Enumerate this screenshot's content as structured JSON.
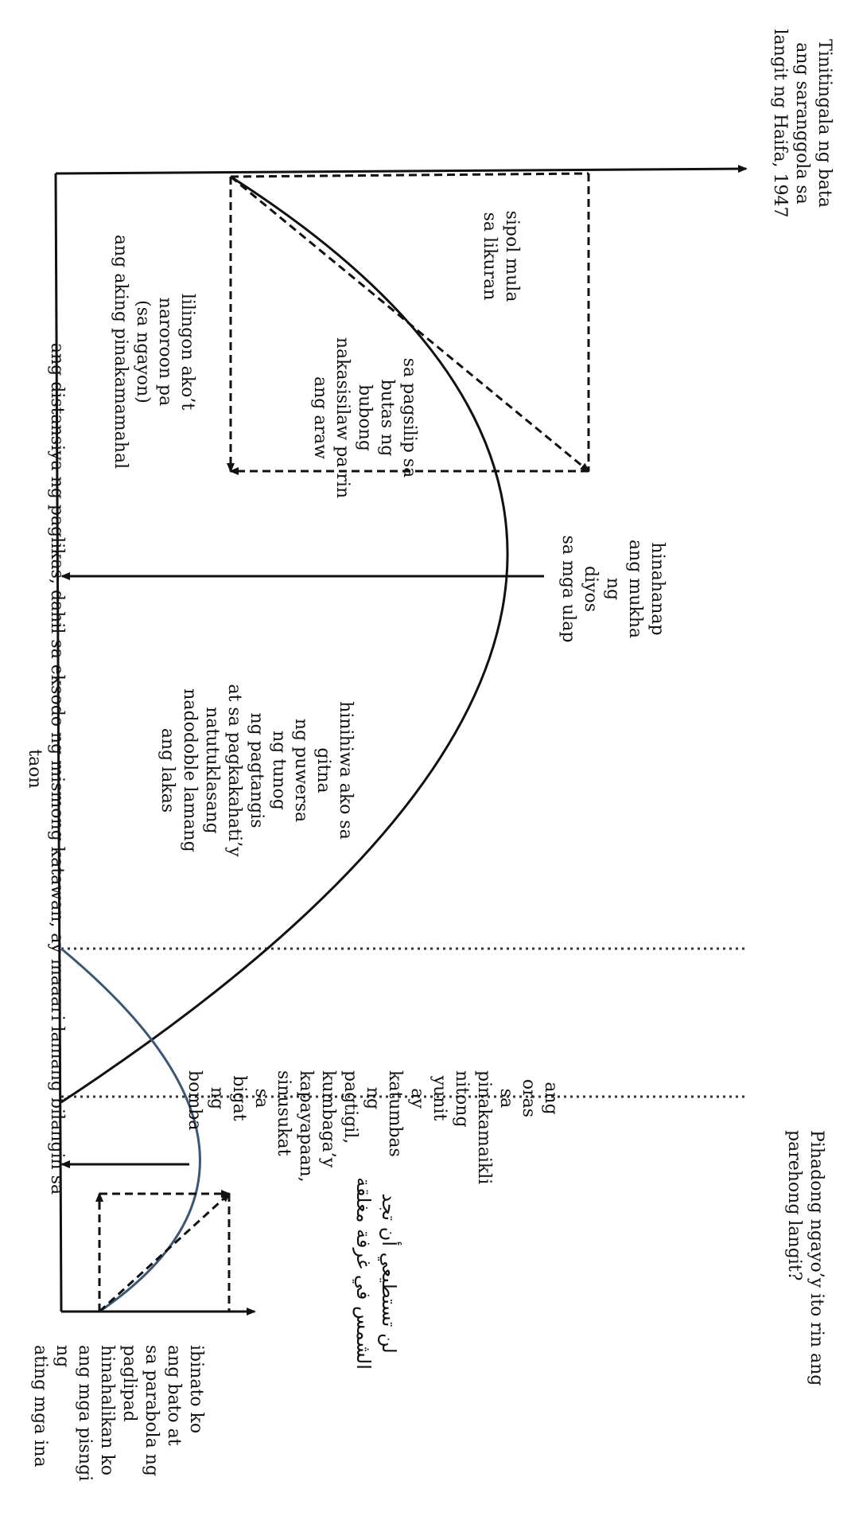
{
  "labels": {
    "kite": "Tinitingala ng bata\nang saranggola sa\nlangit ng Haifa, 1947",
    "whistle": "sipol mula\nsa likuran",
    "roof": "sa pagsilip sa\nbutas ng\nbubong\nnakasisilaw pa rin\nang araw",
    "look_back": "lilingon  ako’t\nnaroroon pa\n(sa ngayon)\nang aking pinakamamahal",
    "god_face": "hinahanap\nang mukha ng\ndiyos\nsa mga ulap",
    "torn": "hinihiwa ako sa\ngitna\nng puwersa\nng tunog\nng pagtangis\nat sa pagkakahati’y\nnatutuklasang\nnadodoble lamang\nang lakas",
    "time_unit": "ang\noras\nsa\npinakamaikli\nnitong\nyunit\nay\nkatumbas\nng\npagtigil,\nkumbaga’y\nkapayapaan,\nsinusukat\nsa\nbigat\nng\nbomba",
    "same_sky": "Pihadong ngayo’y ito rin ang\nparehong langit?",
    "arabic": "لن تستطيعي أن تجد\nالشمس في غرفة مغلقة",
    "stone": "ibinato ko\nang bato at\nsa parabola ng\npaglipad\nhinahalikan ko\nang mga pisngi ng\nating mga ina",
    "axis_distance": "ang distansiya ng paglikas, dahil sa eksodo ng mismong katawan, ay maaari lamang bilangin sa taon"
  },
  "colors": {
    "ink": "#111111",
    "blue_curve": "#3b5778"
  }
}
